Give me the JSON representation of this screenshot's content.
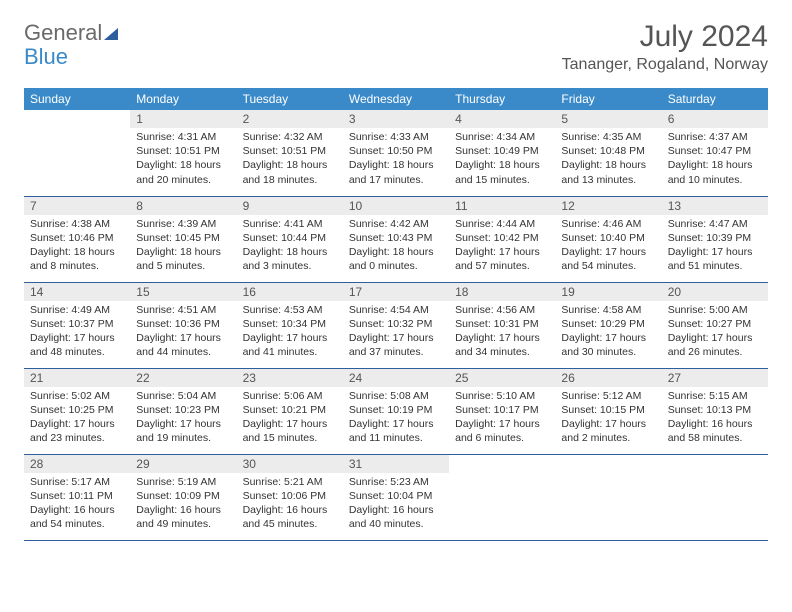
{
  "brand": {
    "word1": "General",
    "word2": "Blue"
  },
  "title": "July 2024",
  "location": "Tananger, Rogaland, Norway",
  "colors": {
    "header_bg": "#3a8ac9",
    "rule": "#2e5e9e",
    "daynum_bg": "#ececec"
  },
  "weekdays": [
    "Sunday",
    "Monday",
    "Tuesday",
    "Wednesday",
    "Thursday",
    "Friday",
    "Saturday"
  ],
  "weeks": [
    [
      {
        "blank": true
      },
      {
        "n": "1",
        "sr": "Sunrise: 4:31 AM",
        "ss": "Sunset: 10:51 PM",
        "dl": "Daylight: 18 hours and 20 minutes."
      },
      {
        "n": "2",
        "sr": "Sunrise: 4:32 AM",
        "ss": "Sunset: 10:51 PM",
        "dl": "Daylight: 18 hours and 18 minutes."
      },
      {
        "n": "3",
        "sr": "Sunrise: 4:33 AM",
        "ss": "Sunset: 10:50 PM",
        "dl": "Daylight: 18 hours and 17 minutes."
      },
      {
        "n": "4",
        "sr": "Sunrise: 4:34 AM",
        "ss": "Sunset: 10:49 PM",
        "dl": "Daylight: 18 hours and 15 minutes."
      },
      {
        "n": "5",
        "sr": "Sunrise: 4:35 AM",
        "ss": "Sunset: 10:48 PM",
        "dl": "Daylight: 18 hours and 13 minutes."
      },
      {
        "n": "6",
        "sr": "Sunrise: 4:37 AM",
        "ss": "Sunset: 10:47 PM",
        "dl": "Daylight: 18 hours and 10 minutes."
      }
    ],
    [
      {
        "n": "7",
        "sr": "Sunrise: 4:38 AM",
        "ss": "Sunset: 10:46 PM",
        "dl": "Daylight: 18 hours and 8 minutes."
      },
      {
        "n": "8",
        "sr": "Sunrise: 4:39 AM",
        "ss": "Sunset: 10:45 PM",
        "dl": "Daylight: 18 hours and 5 minutes."
      },
      {
        "n": "9",
        "sr": "Sunrise: 4:41 AM",
        "ss": "Sunset: 10:44 PM",
        "dl": "Daylight: 18 hours and 3 minutes."
      },
      {
        "n": "10",
        "sr": "Sunrise: 4:42 AM",
        "ss": "Sunset: 10:43 PM",
        "dl": "Daylight: 18 hours and 0 minutes."
      },
      {
        "n": "11",
        "sr": "Sunrise: 4:44 AM",
        "ss": "Sunset: 10:42 PM",
        "dl": "Daylight: 17 hours and 57 minutes."
      },
      {
        "n": "12",
        "sr": "Sunrise: 4:46 AM",
        "ss": "Sunset: 10:40 PM",
        "dl": "Daylight: 17 hours and 54 minutes."
      },
      {
        "n": "13",
        "sr": "Sunrise: 4:47 AM",
        "ss": "Sunset: 10:39 PM",
        "dl": "Daylight: 17 hours and 51 minutes."
      }
    ],
    [
      {
        "n": "14",
        "sr": "Sunrise: 4:49 AM",
        "ss": "Sunset: 10:37 PM",
        "dl": "Daylight: 17 hours and 48 minutes."
      },
      {
        "n": "15",
        "sr": "Sunrise: 4:51 AM",
        "ss": "Sunset: 10:36 PM",
        "dl": "Daylight: 17 hours and 44 minutes."
      },
      {
        "n": "16",
        "sr": "Sunrise: 4:53 AM",
        "ss": "Sunset: 10:34 PM",
        "dl": "Daylight: 17 hours and 41 minutes."
      },
      {
        "n": "17",
        "sr": "Sunrise: 4:54 AM",
        "ss": "Sunset: 10:32 PM",
        "dl": "Daylight: 17 hours and 37 minutes."
      },
      {
        "n": "18",
        "sr": "Sunrise: 4:56 AM",
        "ss": "Sunset: 10:31 PM",
        "dl": "Daylight: 17 hours and 34 minutes."
      },
      {
        "n": "19",
        "sr": "Sunrise: 4:58 AM",
        "ss": "Sunset: 10:29 PM",
        "dl": "Daylight: 17 hours and 30 minutes."
      },
      {
        "n": "20",
        "sr": "Sunrise: 5:00 AM",
        "ss": "Sunset: 10:27 PM",
        "dl": "Daylight: 17 hours and 26 minutes."
      }
    ],
    [
      {
        "n": "21",
        "sr": "Sunrise: 5:02 AM",
        "ss": "Sunset: 10:25 PM",
        "dl": "Daylight: 17 hours and 23 minutes."
      },
      {
        "n": "22",
        "sr": "Sunrise: 5:04 AM",
        "ss": "Sunset: 10:23 PM",
        "dl": "Daylight: 17 hours and 19 minutes."
      },
      {
        "n": "23",
        "sr": "Sunrise: 5:06 AM",
        "ss": "Sunset: 10:21 PM",
        "dl": "Daylight: 17 hours and 15 minutes."
      },
      {
        "n": "24",
        "sr": "Sunrise: 5:08 AM",
        "ss": "Sunset: 10:19 PM",
        "dl": "Daylight: 17 hours and 11 minutes."
      },
      {
        "n": "25",
        "sr": "Sunrise: 5:10 AM",
        "ss": "Sunset: 10:17 PM",
        "dl": "Daylight: 17 hours and 6 minutes."
      },
      {
        "n": "26",
        "sr": "Sunrise: 5:12 AM",
        "ss": "Sunset: 10:15 PM",
        "dl": "Daylight: 17 hours and 2 minutes."
      },
      {
        "n": "27",
        "sr": "Sunrise: 5:15 AM",
        "ss": "Sunset: 10:13 PM",
        "dl": "Daylight: 16 hours and 58 minutes."
      }
    ],
    [
      {
        "n": "28",
        "sr": "Sunrise: 5:17 AM",
        "ss": "Sunset: 10:11 PM",
        "dl": "Daylight: 16 hours and 54 minutes."
      },
      {
        "n": "29",
        "sr": "Sunrise: 5:19 AM",
        "ss": "Sunset: 10:09 PM",
        "dl": "Daylight: 16 hours and 49 minutes."
      },
      {
        "n": "30",
        "sr": "Sunrise: 5:21 AM",
        "ss": "Sunset: 10:06 PM",
        "dl": "Daylight: 16 hours and 45 minutes."
      },
      {
        "n": "31",
        "sr": "Sunrise: 5:23 AM",
        "ss": "Sunset: 10:04 PM",
        "dl": "Daylight: 16 hours and 40 minutes."
      },
      {
        "blank": true
      },
      {
        "blank": true
      },
      {
        "blank": true
      }
    ]
  ]
}
